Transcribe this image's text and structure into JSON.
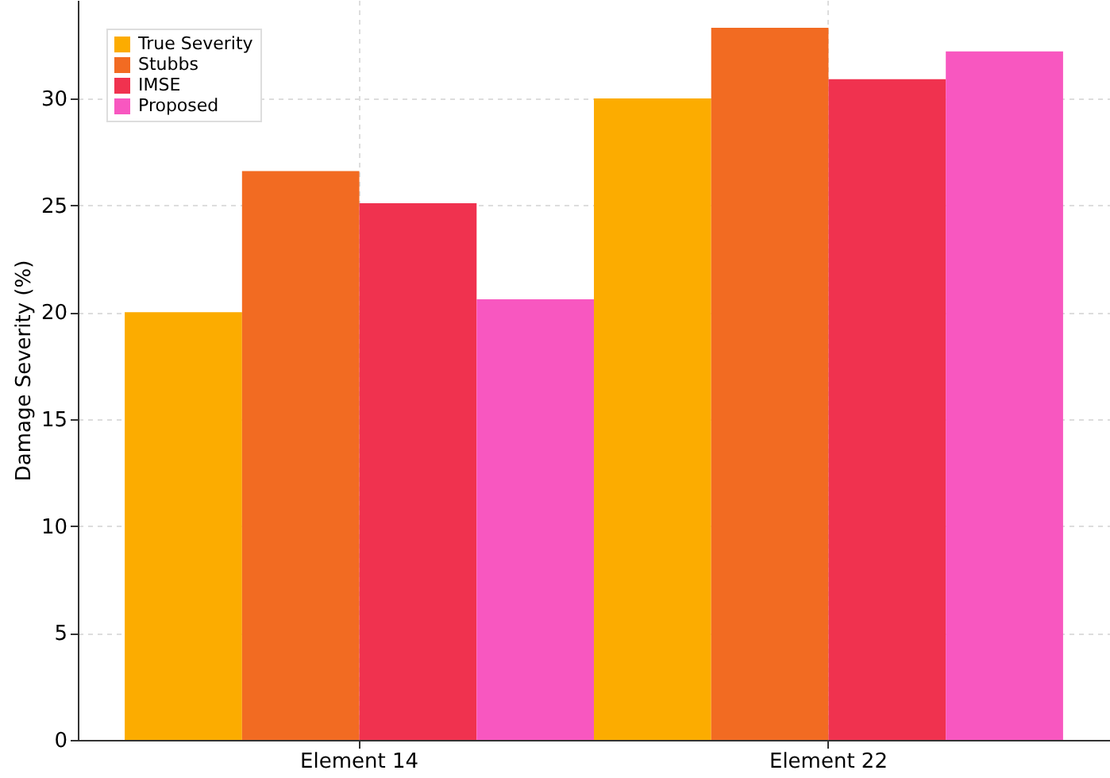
{
  "chart_data": {
    "type": "bar",
    "ylabel": "Damage Severity (%)",
    "categories": [
      "Element 14",
      "Element 22"
    ],
    "series": [
      {
        "name": "True Severity",
        "color": "#fcac00",
        "values": [
          20,
          30
        ]
      },
      {
        "name": "Stubbs",
        "color": "#f26b22",
        "values": [
          26.6,
          33.3
        ]
      },
      {
        "name": "IMSE",
        "color": "#f0324f",
        "values": [
          25.1,
          30.9
        ]
      },
      {
        "name": "Proposed",
        "color": "#f857c0",
        "values": [
          20.6,
          32.2
        ]
      }
    ],
    "ylim": [
      0,
      34.6
    ],
    "yticks": [
      0,
      5,
      10,
      15,
      20,
      25,
      30
    ],
    "grid": true,
    "legend": "top left"
  }
}
